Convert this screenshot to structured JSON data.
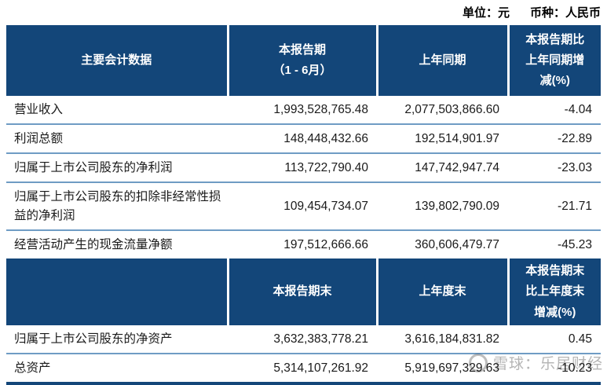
{
  "meta": {
    "unit_label": "单位：元",
    "currency_label": "币种：人民币"
  },
  "table": {
    "section1": {
      "headers": {
        "col1": "主要会计数据",
        "col2": "本报告期\n（1 - 6月）",
        "col3": "上年同期",
        "col4": "本报告期比\n上年同期增\n减(%)"
      },
      "rows": [
        {
          "label": "营业收入",
          "current": "1,993,528,765.48",
          "prior": "2,077,503,866.60",
          "change": "-4.04"
        },
        {
          "label": "利润总额",
          "current": "148,448,432.66",
          "prior": "192,514,901.97",
          "change": "-22.89"
        },
        {
          "label": "归属于上市公司股东的净利润",
          "current": "113,722,790.40",
          "prior": "147,742,947.74",
          "change": "-23.03"
        },
        {
          "label": "归属于上市公司股东的扣除非经常性损益的净利润",
          "current": "109,454,734.07",
          "prior": "139,802,790.09",
          "change": "-21.71"
        },
        {
          "label": "经营活动产生的现金流量净额",
          "current": "197,512,666.66",
          "prior": "360,606,479.77",
          "change": "-45.23"
        }
      ]
    },
    "section2": {
      "headers": {
        "col1": "",
        "col2": "本报告期末",
        "col3": "上年度末",
        "col4": "本报告期末\n比上年度末\n增减(%)"
      },
      "rows": [
        {
          "label": "归属于上市公司股东的净资产",
          "current": "3,632,383,778.21",
          "prior": "3,616,184,831.82",
          "change": "0.45"
        },
        {
          "label": "总资产",
          "current": "5,314,107,261.92",
          "prior": "5,919,697,329.63",
          "change": "-10.23"
        }
      ]
    }
  },
  "watermark": {
    "source_text": "雪球：乐居财经",
    "icon": "snowball-circle-icon"
  },
  "colors": {
    "header_bg": "#134679",
    "divider": "#6f9cc4",
    "watermark_gray": "#b5b5b5"
  }
}
